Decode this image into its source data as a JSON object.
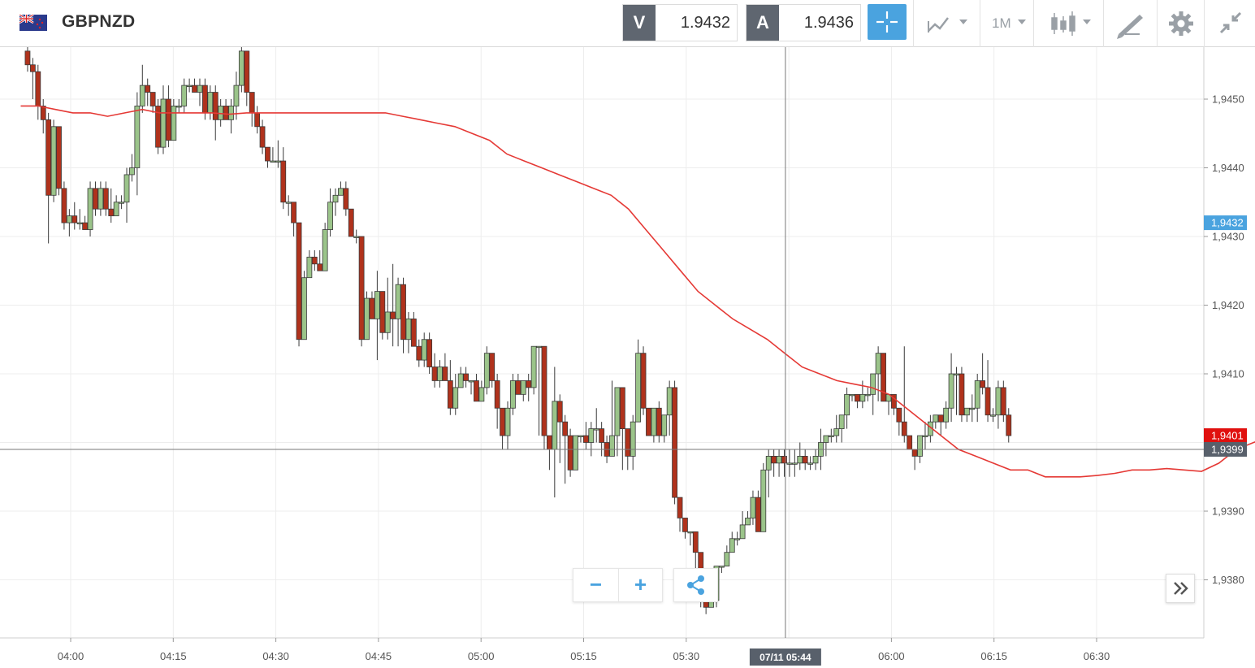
{
  "header": {
    "symbol": "GBPNZD",
    "flag_icon": "gb-nz-flag-icon",
    "sell": {
      "label": "V",
      "price": "1.9432"
    },
    "buy": {
      "label": "A",
      "price": "1.9436"
    },
    "timeframe": "1M",
    "tools": [
      "crosshair-icon",
      "chart-type-icon",
      "candlestick-icon",
      "drawing-tools-icon",
      "gear-icon",
      "collapse-icon"
    ]
  },
  "colors": {
    "bull": "#9bc48a",
    "bear": "#b0321c",
    "ma": "#e53935",
    "sell_tag": "#4aa3df",
    "last_tag": "#e0100e",
    "cursor_tag": "#58606b"
  },
  "chart_data": {
    "type": "candlestick",
    "ylim": [
      1.9373,
      1.946
    ],
    "y_ticks": [
      {
        "value": 1.945,
        "label": "1,9450"
      },
      {
        "value": 1.944,
        "label": "1,9440"
      },
      {
        "value": 1.943,
        "label": "1,9430"
      },
      {
        "value": 1.942,
        "label": "1,9420"
      },
      {
        "value": 1.941,
        "label": "1,9410"
      },
      {
        "value": 1.939,
        "label": "1,9390"
      },
      {
        "value": 1.938,
        "label": "1,9380"
      }
    ],
    "x_ticks": [
      {
        "minute": 0,
        "label": "04:00"
      },
      {
        "minute": 15,
        "label": "04:15"
      },
      {
        "minute": 30,
        "label": "04:30"
      },
      {
        "minute": 45,
        "label": "04:45"
      },
      {
        "minute": 60,
        "label": "05:00"
      },
      {
        "minute": 75,
        "label": "05:15"
      },
      {
        "minute": 90,
        "label": "05:30"
      },
      {
        "minute": 120,
        "label": "06:00"
      },
      {
        "minute": 135,
        "label": "06:15"
      },
      {
        "minute": 150,
        "label": "06:30"
      }
    ],
    "tags": {
      "sell": {
        "value": 1.9432,
        "label": "1,9432"
      },
      "last": {
        "value": 1.9401,
        "label": "1,9401"
      },
      "cursor": {
        "value": 1.9399,
        "label": "1,9399"
      }
    },
    "cursor": {
      "minute": 104.5,
      "label": "07/11 05:44"
    },
    "ma_values": [
      1.9449,
      1.9449,
      1.94485,
      1.9448,
      1.9448,
      1.94475,
      1.9448,
      1.94485,
      1.9448,
      1.9448,
      1.9448,
      1.9448,
      1.94478,
      1.9448,
      1.9448,
      1.9448,
      1.9448,
      1.9448,
      1.9448,
      1.9448,
      1.9448,
      1.9448,
      1.94475,
      1.9447,
      1.94465,
      1.9446,
      1.9445,
      1.9444,
      1.9442,
      1.9441,
      1.944,
      1.9439,
      1.9438,
      1.9437,
      1.9436,
      1.9434,
      1.9431,
      1.9428,
      1.9425,
      1.9422,
      1.942,
      1.9418,
      1.94165,
      1.9415,
      1.9413,
      1.9411,
      1.941,
      1.9409,
      1.94085,
      1.9408,
      1.9407,
      1.9405,
      1.9403,
      1.9401,
      1.9399,
      1.9398,
      1.9397,
      1.9396,
      1.9396,
      1.9395,
      1.9395,
      1.9395,
      1.93952,
      1.93955,
      1.9396,
      1.9396,
      1.93962,
      1.9396,
      1.93958,
      1.9397,
      1.9399,
      1.94,
      1.9401
    ],
    "candles": [
      [
        1.9457,
        1.9455,
        1.9458,
        1.9454
      ],
      [
        1.9455,
        1.9454,
        1.9456,
        1.945
      ],
      [
        1.9454,
        1.9449,
        1.9455,
        1.9447
      ],
      [
        1.9449,
        1.9447,
        1.945,
        1.9445
      ],
      [
        1.9447,
        1.9436,
        1.9448,
        1.9429
      ],
      [
        1.9436,
        1.9446,
        1.9447,
        1.9435
      ],
      [
        1.9446,
        1.9437,
        1.9446,
        1.9436
      ],
      [
        1.9437,
        1.9432,
        1.9438,
        1.9431
      ],
      [
        1.9432,
        1.9433,
        1.9434,
        1.943
      ],
      [
        1.9433,
        1.9432,
        1.9435,
        1.9431
      ],
      [
        1.9432,
        1.9432,
        1.9434,
        1.9431
      ],
      [
        1.9432,
        1.9431,
        1.9433,
        1.9431
      ],
      [
        1.9431,
        1.9437,
        1.9438,
        1.943
      ],
      [
        1.9437,
        1.9434,
        1.9438,
        1.9433
      ],
      [
        1.9434,
        1.9437,
        1.9438,
        1.9433
      ],
      [
        1.9437,
        1.9434,
        1.9438,
        1.9433
      ],
      [
        1.9434,
        1.9433,
        1.9437,
        1.9432
      ],
      [
        1.9433,
        1.9435,
        1.9436,
        1.9433
      ],
      [
        1.9435,
        1.9435,
        1.9436,
        1.9434
      ],
      [
        1.9435,
        1.9439,
        1.944,
        1.9432
      ],
      [
        1.9439,
        1.944,
        1.9442,
        1.9438
      ],
      [
        1.944,
        1.9449,
        1.9451,
        1.9436
      ],
      [
        1.9449,
        1.9452,
        1.9455,
        1.9448
      ],
      [
        1.9452,
        1.9451,
        1.9453,
        1.9449
      ],
      [
        1.9451,
        1.9449,
        1.945,
        1.9448
      ],
      [
        1.9449,
        1.9443,
        1.945,
        1.9442
      ],
      [
        1.9443,
        1.945,
        1.9452,
        1.9442
      ],
      [
        1.945,
        1.9444,
        1.9452,
        1.9443
      ],
      [
        1.9444,
        1.9449,
        1.945,
        1.9444
      ],
      [
        1.9449,
        1.9449,
        1.945,
        1.9448
      ],
      [
        1.9449,
        1.9452,
        1.9453,
        1.9448
      ],
      [
        1.9452,
        1.9452,
        1.9453,
        1.9451
      ],
      [
        1.9452,
        1.9451,
        1.9453,
        1.9451
      ],
      [
        1.9451,
        1.9452,
        1.9453,
        1.9449
      ],
      [
        1.9452,
        1.9448,
        1.9453,
        1.9447
      ],
      [
        1.9448,
        1.9451,
        1.9452,
        1.9447
      ],
      [
        1.9451,
        1.9447,
        1.9452,
        1.9444
      ],
      [
        1.9447,
        1.9449,
        1.945,
        1.9446
      ],
      [
        1.9449,
        1.9447,
        1.945,
        1.9447
      ],
      [
        1.9447,
        1.9449,
        1.945,
        1.9445
      ],
      [
        1.9449,
        1.9452,
        1.9454,
        1.9447
      ],
      [
        1.9452,
        1.9457,
        1.9458,
        1.9451
      ],
      [
        1.9457,
        1.9451,
        1.9456,
        1.9449
      ],
      [
        1.9451,
        1.9448,
        1.9449,
        1.9446
      ],
      [
        1.9448,
        1.9446,
        1.9449,
        1.9445
      ],
      [
        1.9446,
        1.9443,
        1.9447,
        1.9442
      ],
      [
        1.9443,
        1.9441,
        1.9443,
        1.944
      ],
      [
        1.9441,
        1.9441,
        1.9443,
        1.9441
      ],
      [
        1.9441,
        1.9441,
        1.9444,
        1.944
      ],
      [
        1.9441,
        1.9435,
        1.9443,
        1.9434
      ],
      [
        1.9435,
        1.9435,
        1.9436,
        1.9433
      ],
      [
        1.9435,
        1.9432,
        1.9435,
        1.943
      ],
      [
        1.9432,
        1.9415,
        1.9432,
        1.9414
      ],
      [
        1.9415,
        1.9424,
        1.9425,
        1.9415
      ],
      [
        1.9424,
        1.9427,
        1.9428,
        1.9424
      ],
      [
        1.9427,
        1.9426,
        1.9428,
        1.9425
      ],
      [
        1.9426,
        1.9425,
        1.9428,
        1.9425
      ],
      [
        1.9425,
        1.9431,
        1.9432,
        1.9425
      ],
      [
        1.9431,
        1.9435,
        1.9437,
        1.943
      ],
      [
        1.9435,
        1.9436,
        1.9437,
        1.9433
      ],
      [
        1.9436,
        1.9437,
        1.9438,
        1.9436
      ],
      [
        1.9437,
        1.9434,
        1.9438,
        1.9433
      ],
      [
        1.9434,
        1.943,
        1.9434,
        1.943
      ],
      [
        1.943,
        1.943,
        1.9431,
        1.9429
      ],
      [
        1.943,
        1.9415,
        1.943,
        1.9414
      ],
      [
        1.9415,
        1.9421,
        1.9422,
        1.9415
      ],
      [
        1.9421,
        1.9418,
        1.9422,
        1.9418
      ],
      [
        1.9418,
        1.9422,
        1.9425,
        1.9412
      ],
      [
        1.9422,
        1.9416,
        1.9422,
        1.9415
      ],
      [
        1.9416,
        1.9419,
        1.9424,
        1.9415
      ]
    ],
    "candles_b": [
      [
        1.9419,
        1.9418,
        1.9426,
        1.9414
      ],
      [
        1.9418,
        1.9423,
        1.9424,
        1.9414
      ],
      [
        1.9423,
        1.9415,
        1.9424,
        1.9413
      ],
      [
        1.9415,
        1.9418,
        1.9419,
        1.9413
      ],
      [
        1.9418,
        1.9414,
        1.9419,
        1.9414
      ],
      [
        1.9414,
        1.9412,
        1.9415,
        1.9411
      ],
      [
        1.9412,
        1.9415,
        1.9416,
        1.9411
      ],
      [
        1.9415,
        1.9411,
        1.9416,
        1.941
      ],
      [
        1.9411,
        1.9409,
        1.9413,
        1.9408
      ],
      [
        1.9409,
        1.9411,
        1.9412,
        1.9408
      ],
      [
        1.9411,
        1.9409,
        1.9413,
        1.9409
      ],
      [
        1.9409,
        1.9405,
        1.9412,
        1.9404
      ],
      [
        1.9405,
        1.9408,
        1.941,
        1.9404
      ],
      [
        1.9408,
        1.941,
        1.9411,
        1.9408
      ],
      [
        1.941,
        1.9409,
        1.9411,
        1.9408
      ],
      [
        1.9409,
        1.9409,
        1.9409,
        1.9407
      ],
      [
        1.9409,
        1.9406,
        1.941,
        1.9406
      ],
      [
        1.9406,
        1.9408,
        1.9409,
        1.9406
      ],
      [
        1.9408,
        1.9413,
        1.9414,
        1.9407
      ],
      [
        1.9413,
        1.9409,
        1.9413,
        1.9408
      ],
      [
        1.9409,
        1.9405,
        1.941,
        1.9402
      ],
      [
        1.9405,
        1.9401,
        1.9405,
        1.9399
      ],
      [
        1.9401,
        1.9405,
        1.9406,
        1.9399
      ],
      [
        1.9405,
        1.9409,
        1.941,
        1.9404
      ],
      [
        1.9409,
        1.9407,
        1.941,
        1.9407
      ],
      [
        1.9407,
        1.9409,
        1.9409,
        1.9406
      ],
      [
        1.9409,
        1.9408,
        1.941,
        1.9406
      ],
      [
        1.9408,
        1.9414,
        1.9414,
        1.9407
      ],
      [
        1.9414,
        1.9414,
        1.9414,
        1.9401
      ],
      [
        1.9414,
        1.9401,
        1.9414,
        1.9399
      ],
      [
        1.9401,
        1.9399,
        1.9401,
        1.9396
      ],
      [
        1.9399,
        1.9406,
        1.9411,
        1.9392
      ],
      [
        1.9406,
        1.9403,
        1.9407,
        1.9397
      ],
      [
        1.9403,
        1.9401,
        1.9404,
        1.9394
      ],
      [
        1.9401,
        1.9396,
        1.9402,
        1.9395
      ],
      [
        1.9396,
        1.9401,
        1.9401,
        1.9397
      ],
      [
        1.9401,
        1.9401,
        1.9401,
        1.94
      ],
      [
        1.9401,
        1.94,
        1.9403,
        1.9399
      ],
      [
        1.94,
        1.9402,
        1.9403,
        1.9398
      ],
      [
        1.9402,
        1.9402,
        1.9405,
        1.94
      ],
      [
        1.9402,
        1.94,
        1.9403,
        1.9398
      ],
      [
        1.94,
        1.9398,
        1.9401,
        1.9397
      ],
      [
        1.9398,
        1.9401,
        1.9409,
        1.9399
      ],
      [
        1.9401,
        1.9408,
        1.9408,
        1.9398
      ],
      [
        1.9408,
        1.9402,
        1.9408,
        1.9396
      ],
      [
        1.9402,
        1.9398,
        1.9402,
        1.9396
      ],
      [
        1.9398,
        1.9403,
        1.9404,
        1.9396
      ],
      [
        1.9403,
        1.9413,
        1.9415,
        1.9403
      ],
      [
        1.9413,
        1.9405,
        1.9414,
        1.9404
      ],
      [
        1.9405,
        1.9401,
        1.9405,
        1.9401
      ],
      [
        1.9401,
        1.9405,
        1.9405,
        1.94
      ],
      [
        1.9405,
        1.9401,
        1.9406,
        1.94
      ],
      [
        1.9401,
        1.9404,
        1.9404,
        1.94
      ],
      [
        1.9404,
        1.9408,
        1.9409,
        1.9401
      ],
      [
        1.9408,
        1.9392,
        1.9409,
        1.9391
      ],
      [
        1.9392,
        1.9389,
        1.9392,
        1.9387
      ],
      [
        1.9389,
        1.9387,
        1.9389,
        1.9386
      ],
      [
        1.9387,
        1.9387,
        1.9387,
        1.9385
      ],
      [
        1.9387,
        1.9384,
        1.9387,
        1.9381
      ],
      [
        1.9384,
        1.9379,
        1.9384,
        1.9376
      ],
      [
        1.9379,
        1.9376,
        1.9378,
        1.9375
      ],
      [
        1.9376,
        1.9377,
        1.9378,
        1.9376
      ],
      [
        1.9377,
        1.9382,
        1.9382,
        1.9376
      ],
      [
        1.9382,
        1.9382,
        1.9382,
        1.9381
      ],
      [
        1.9382,
        1.9384,
        1.9385,
        1.9383
      ],
      [
        1.9384,
        1.9386,
        1.9387,
        1.9384
      ],
      [
        1.9386,
        1.9386,
        1.9387,
        1.9385
      ],
      [
        1.9386,
        1.9388,
        1.939,
        1.9387
      ],
      [
        1.9388,
        1.9389,
        1.939,
        1.9388
      ],
      [
        1.9389,
        1.9392,
        1.9393,
        1.9388
      ]
    ],
    "candles_c": [
      [
        1.9392,
        1.9387,
        1.9393,
        1.9387
      ],
      [
        1.9387,
        1.9396,
        1.9397,
        1.9387
      ],
      [
        1.9396,
        1.9398,
        1.9399,
        1.9392
      ],
      [
        1.9398,
        1.9397,
        1.9399,
        1.9395
      ],
      [
        1.9397,
        1.9398,
        1.9399,
        1.9395
      ],
      [
        1.9398,
        1.9397,
        1.9399,
        1.9395
      ],
      [
        1.9397,
        1.9397,
        1.9399,
        1.9395
      ],
      [
        1.9397,
        1.9397,
        1.9399,
        1.9395
      ],
      [
        1.9397,
        1.9398,
        1.94,
        1.9396
      ],
      [
        1.9398,
        1.9397,
        1.9399,
        1.9396
      ],
      [
        1.9397,
        1.9397,
        1.9398,
        1.9396
      ],
      [
        1.9397,
        1.9398,
        1.9399,
        1.9396
      ],
      [
        1.9398,
        1.94,
        1.9402,
        1.9396
      ],
      [
        1.94,
        1.9401,
        1.9401,
        1.9398
      ],
      [
        1.9401,
        1.9401,
        1.9402,
        1.94
      ],
      [
        1.9401,
        1.9402,
        1.9404,
        1.94
      ],
      [
        1.9402,
        1.9404,
        1.9404,
        1.94
      ],
      [
        1.9404,
        1.9407,
        1.9408,
        1.9402
      ],
      [
        1.9407,
        1.9407,
        1.9407,
        1.9406
      ],
      [
        1.9407,
        1.9406,
        1.9407,
        1.9405
      ],
      [
        1.9406,
        1.9407,
        1.9409,
        1.9405
      ],
      [
        1.9407,
        1.9407,
        1.9408,
        1.9406
      ],
      [
        1.9407,
        1.941,
        1.941,
        1.9404
      ],
      [
        1.941,
        1.9413,
        1.9414,
        1.9406
      ],
      [
        1.9413,
        1.9406,
        1.9411,
        1.9406
      ],
      [
        1.9406,
        1.9407,
        1.9407,
        1.9404
      ],
      [
        1.9407,
        1.9405,
        1.9406,
        1.9404
      ],
      [
        1.9405,
        1.9403,
        1.9405,
        1.9401
      ],
      [
        1.9403,
        1.9401,
        1.9414,
        1.94
      ],
      [
        1.9401,
        1.9399,
        1.9401,
        1.9399
      ],
      [
        1.9399,
        1.9398,
        1.9398,
        1.9396
      ],
      [
        1.9398,
        1.9401,
        1.9401,
        1.9397
      ],
      [
        1.9401,
        1.9401,
        1.9403,
        1.9399
      ],
      [
        1.9401,
        1.9403,
        1.9404,
        1.94
      ],
      [
        1.9403,
        1.9404,
        1.9404,
        1.9402
      ],
      [
        1.9404,
        1.9403,
        1.9404,
        1.9401
      ],
      [
        1.9403,
        1.9405,
        1.9406,
        1.9402
      ],
      [
        1.9405,
        1.941,
        1.9413,
        1.9403
      ],
      [
        1.941,
        1.941,
        1.9411,
        1.9404
      ],
      [
        1.941,
        1.9404,
        1.9411,
        1.9403
      ],
      [
        1.9404,
        1.9405,
        1.9405,
        1.9403
      ],
      [
        1.9405,
        1.9405,
        1.9407,
        1.9403
      ],
      [
        1.9405,
        1.9409,
        1.941,
        1.9403
      ],
      [
        1.9409,
        1.9408,
        1.9413,
        1.9407
      ],
      [
        1.9408,
        1.9404,
        1.9412,
        1.9403
      ],
      [
        1.9404,
        1.9404,
        1.9405,
        1.9403
      ],
      [
        1.9404,
        1.9408,
        1.9409,
        1.9402
      ],
      [
        1.9408,
        1.9404,
        1.9409,
        1.9403
      ],
      [
        1.9404,
        1.9401,
        1.9405,
        1.94
      ]
    ]
  },
  "controls": {
    "zoom_out": "−",
    "zoom_in": "+",
    "share_icon": "share-icon",
    "scroll_icon": "chevrons-right-icon"
  }
}
